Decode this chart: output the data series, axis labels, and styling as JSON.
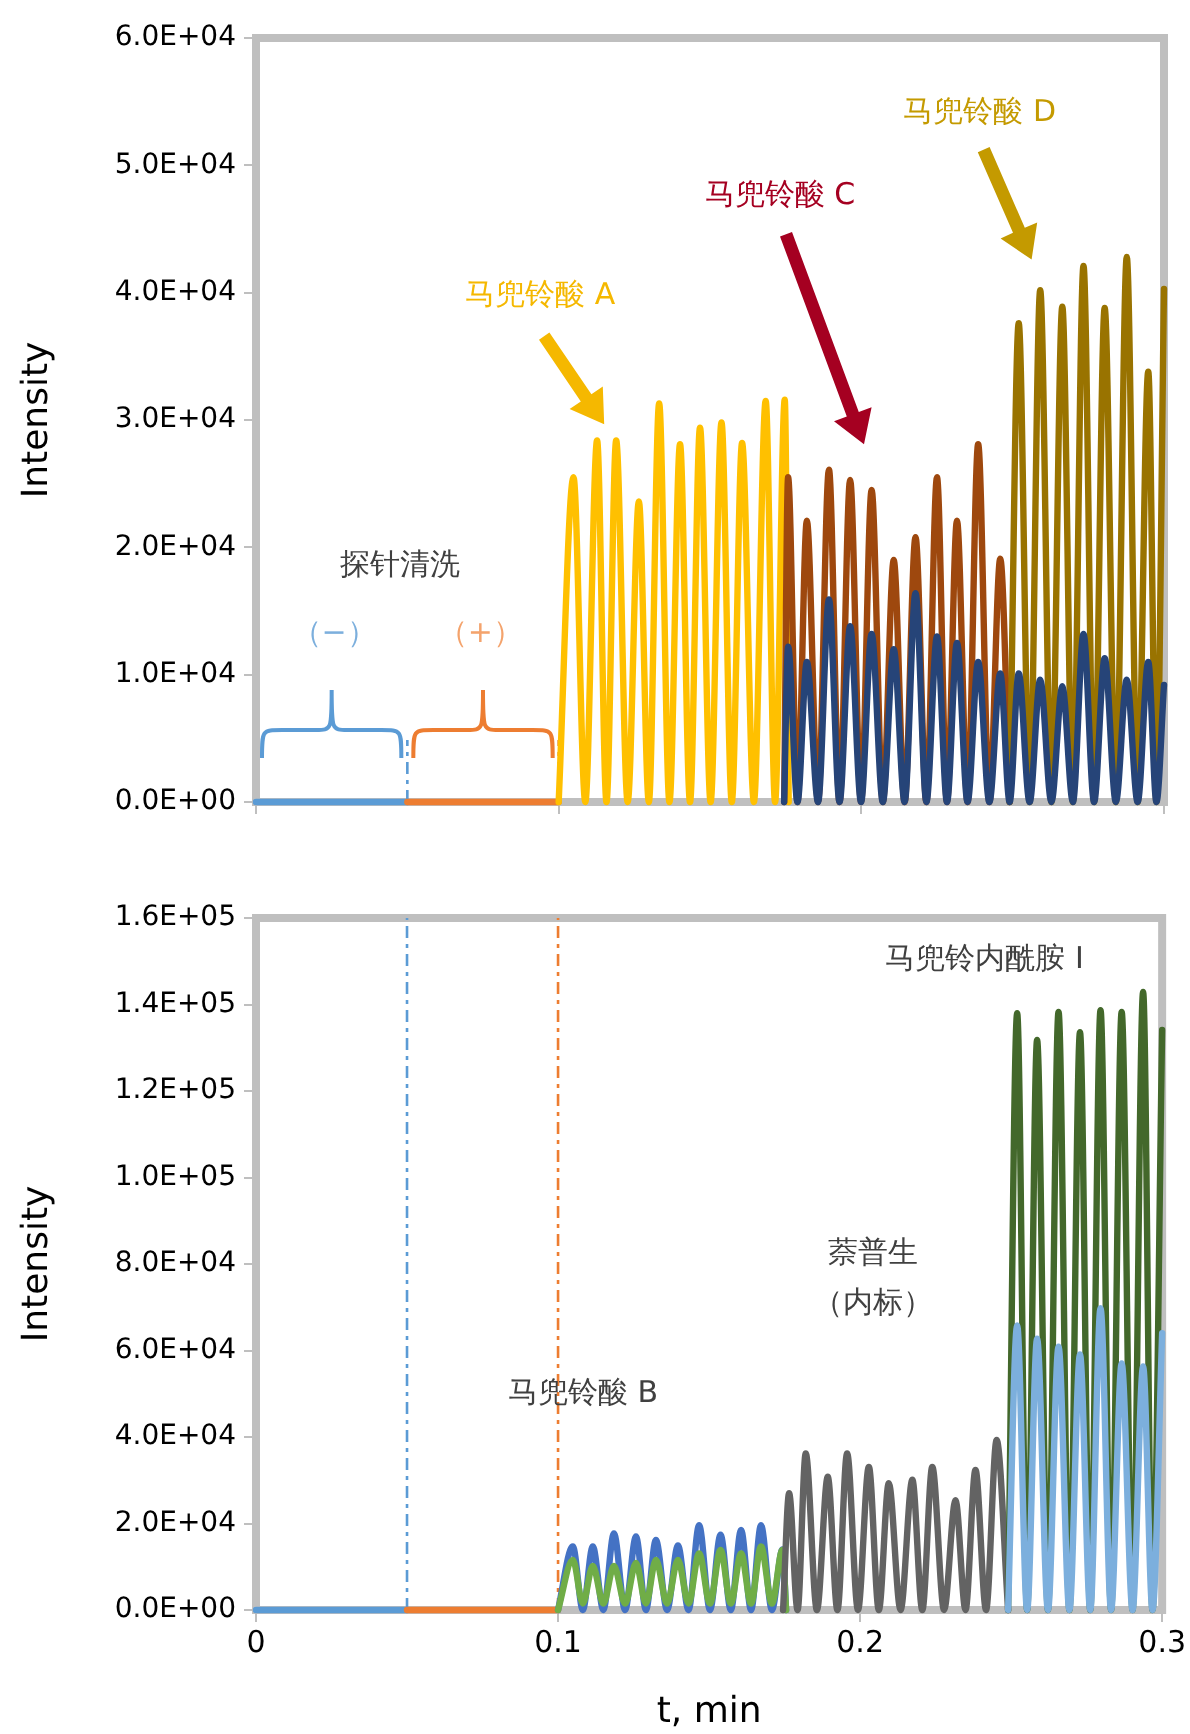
{
  "chart_data": [
    {
      "type": "line",
      "ylabel": "Intensity",
      "xlim": [
        0,
        0.3
      ],
      "xticks": [
        0,
        0.1,
        0.2,
        0.3
      ],
      "ylim": [
        0,
        60000
      ],
      "yticks": [
        {
          "value": 0,
          "label": "0.0E+00"
        },
        {
          "value": 10000,
          "label": "1.0E+04"
        },
        {
          "value": 20000,
          "label": "2.0E+04"
        },
        {
          "value": 30000,
          "label": "3.0E+04"
        },
        {
          "value": 40000,
          "label": "4.0E+04"
        },
        {
          "value": 50000,
          "label": "5.0E+04"
        },
        {
          "value": 60000,
          "label": "6.0E+04"
        }
      ],
      "tick_labels": "y",
      "grid": false,
      "legend": false,
      "annotations": [
        "马兜铃酸 A",
        "马兜铃酸 C",
        "马兜铃酸 D",
        "探针清洗",
        "（−）",
        "（+）"
      ],
      "ref_lines": [
        {
          "axis": "x",
          "value": 0.05,
          "color": "#5b9bd5",
          "line_style": "dashed"
        },
        {
          "axis": "x",
          "value": 0.1,
          "color": "#ed7d31",
          "line_style": "dashed"
        }
      ],
      "series": [
        {
          "color": "#5b9bd5",
          "x": [
            0,
            0.05
          ],
          "values": [
            0,
            0
          ]
        },
        {
          "color": "#ed7d31",
          "x": [
            0.05,
            0.1
          ],
          "values": [
            0,
            0
          ]
        },
        {
          "color": "#ffc000",
          "x": [
            0.1,
            0.1049,
            0.1088,
            0.1127,
            0.1158,
            0.119,
            0.1228,
            0.1265,
            0.1298,
            0.1332,
            0.1366,
            0.1401,
            0.1434,
            0.1467,
            0.1502,
            0.1538,
            0.1572,
            0.1606,
            0.1645,
            0.1684,
            0.1715,
            0.1747,
            0.176
          ],
          "values": [
            0,
            25500,
            0,
            28400,
            0,
            28400,
            0,
            23600,
            0,
            31300,
            0,
            28100,
            0,
            29400,
            0,
            29800,
            0,
            28200,
            0,
            31500,
            0,
            31600,
            0
          ]
        },
        {
          "color": "#9e480e",
          "x": [
            0.1745,
            0.1758,
            0.1789,
            0.182,
            0.1857,
            0.1893,
            0.1928,
            0.1963,
            0.1999,
            0.2034,
            0.2071,
            0.2107,
            0.2143,
            0.2179,
            0.2215,
            0.225,
            0.2283,
            0.2316,
            0.2351,
            0.2386,
            0.2423,
            0.2459,
            0.249
          ],
          "values": [
            0,
            25500,
            0,
            22100,
            0,
            26100,
            0,
            25300,
            0,
            24500,
            0,
            19000,
            0,
            20800,
            0,
            25500,
            0,
            22100,
            0,
            28100,
            0,
            19100,
            0
          ]
        },
        {
          "color": "#997300",
          "x": [
            0.249,
            0.252,
            0.2556,
            0.2591,
            0.2628,
            0.2664,
            0.2699,
            0.2734,
            0.2769,
            0.2804,
            0.2841,
            0.2877,
            0.2913,
            0.2948,
            0.2975,
            0.3
          ],
          "values": [
            0,
            37600,
            0,
            40200,
            0,
            38900,
            0,
            42100,
            0,
            38800,
            0,
            42800,
            0,
            33800,
            0,
            40300
          ]
        },
        {
          "color": "#264478",
          "x": [
            0.1745,
            0.1758,
            0.1789,
            0.182,
            0.1857,
            0.1893,
            0.1928,
            0.1963,
            0.1999,
            0.2034,
            0.2071,
            0.2107,
            0.2143,
            0.2179,
            0.2215,
            0.225,
            0.2283,
            0.2316,
            0.2351,
            0.2386,
            0.2423,
            0.2459,
            0.249,
            0.252,
            0.2556,
            0.2591,
            0.2628,
            0.2664,
            0.2699,
            0.2734,
            0.2769,
            0.2804,
            0.2841,
            0.2877,
            0.2913,
            0.2948,
            0.2975,
            0.3
          ],
          "values": [
            0,
            12200,
            0,
            11000,
            0,
            15900,
            0,
            13800,
            0,
            13200,
            0,
            12000,
            0,
            16400,
            0,
            13000,
            0,
            12500,
            0,
            11000,
            0,
            10100,
            0,
            10100,
            0,
            9600,
            0,
            9100,
            0,
            13200,
            0,
            11300,
            0,
            9600,
            0,
            11000,
            0,
            9200
          ]
        }
      ]
    },
    {
      "type": "line",
      "xlabel": "t, min",
      "ylabel": "Intensity",
      "xlim": [
        0,
        0.3
      ],
      "xticks": [
        0,
        0.1,
        0.2,
        0.3
      ],
      "ylim": [
        0,
        160000
      ],
      "yticks": [
        {
          "value": 0,
          "label": "0.0E+00"
        },
        {
          "value": 20000,
          "label": "2.0E+04"
        },
        {
          "value": 40000,
          "label": "4.0E+04"
        },
        {
          "value": 60000,
          "label": "6.0E+04"
        },
        {
          "value": 80000,
          "label": "8.0E+04"
        },
        {
          "value": 100000,
          "label": "1.0E+05"
        },
        {
          "value": 120000,
          "label": "1.2E+05"
        },
        {
          "value": 140000,
          "label": "1.4E+05"
        },
        {
          "value": 160000,
          "label": "1.6E+05"
        }
      ],
      "grid": false,
      "legend": false,
      "annotations": [
        "马兜铃酸 B",
        "萘普生",
        "（内标）",
        "马兜铃内酰胺 I"
      ],
      "ref_lines": [
        {
          "axis": "x",
          "value": 0.05,
          "color": "#5b9bd5",
          "line_style": "dashed"
        },
        {
          "axis": "x",
          "value": 0.1,
          "color": "#ed7d31",
          "line_style": "dashed"
        }
      ],
      "series": [
        {
          "color": "#5b9bd5",
          "x": [
            0,
            0.05
          ],
          "values": [
            0,
            0
          ]
        },
        {
          "color": "#ed7d31",
          "x": [
            0.05,
            0.1
          ],
          "values": [
            0,
            0
          ]
        },
        {
          "color": "#4472c4",
          "x": [
            0.1,
            0.1049,
            0.1082,
            0.1115,
            0.115,
            0.1185,
            0.1222,
            0.1258,
            0.1291,
            0.1324,
            0.1361,
            0.1397,
            0.1432,
            0.1467,
            0.1503,
            0.1538,
            0.1572,
            0.1606,
            0.1639,
            0.1672,
            0.1708,
            0.1743,
            0.1755
          ],
          "values": [
            0,
            14700,
            0,
            14700,
            0,
            17700,
            0,
            17000,
            0,
            16200,
            0,
            14900,
            0,
            19600,
            0,
            17400,
            0,
            18500,
            0,
            19600,
            0,
            14000,
            0
          ]
        },
        {
          "color": "#70ad47",
          "x": [
            0.1,
            0.1049,
            0.1082,
            0.1115,
            0.115,
            0.1185,
            0.1222,
            0.1258,
            0.1291,
            0.1324,
            0.1361,
            0.1397,
            0.1432,
            0.1467,
            0.1503,
            0.1538,
            0.1572,
            0.1606,
            0.1639,
            0.1672,
            0.1708,
            0.1743,
            0.1755
          ],
          "values": [
            0,
            11600,
            1500,
            10200,
            1500,
            10200,
            1500,
            10900,
            1500,
            11600,
            1500,
            11600,
            1500,
            13100,
            1500,
            13900,
            1500,
            13100,
            1500,
            14700,
            1500,
            13900,
            0
          ]
        },
        {
          "color": "#636363",
          "x": [
            0.1745,
            0.1765,
            0.1793,
            0.182,
            0.1857,
            0.1893,
            0.1925,
            0.1957,
            0.1993,
            0.2029,
            0.2062,
            0.2095,
            0.2134,
            0.2173,
            0.2206,
            0.2239,
            0.2278,
            0.2316,
            0.2349,
            0.2382,
            0.2417,
            0.2452,
            0.249
          ],
          "values": [
            0,
            27000,
            0,
            36200,
            0,
            30800,
            0,
            36200,
            0,
            33100,
            0,
            29300,
            0,
            30100,
            0,
            33100,
            0,
            25400,
            0,
            32400,
            0,
            39300,
            0
          ]
        },
        {
          "color": "#43682b",
          "x": [
            0.249,
            0.252,
            0.2553,
            0.2586,
            0.2622,
            0.2657,
            0.2693,
            0.2728,
            0.2762,
            0.2796,
            0.2831,
            0.2866,
            0.2902,
            0.2937,
            0.2968,
            0.3
          ],
          "values": [
            0,
            138000,
            0,
            131800,
            0,
            138300,
            0,
            133600,
            0,
            138700,
            0,
            138300,
            0,
            142900,
            0,
            134100
          ]
        },
        {
          "color": "#7cafdd",
          "x": [
            0.249,
            0.252,
            0.2553,
            0.2586,
            0.2622,
            0.2657,
            0.2693,
            0.2728,
            0.2762,
            0.2796,
            0.2831,
            0.2866,
            0.2902,
            0.2937,
            0.2968,
            0.3
          ],
          "values": [
            0,
            65800,
            0,
            62700,
            0,
            60900,
            0,
            59100,
            0,
            69800,
            0,
            57000,
            0,
            56300,
            0,
            64000
          ]
        }
      ]
    }
  ]
}
